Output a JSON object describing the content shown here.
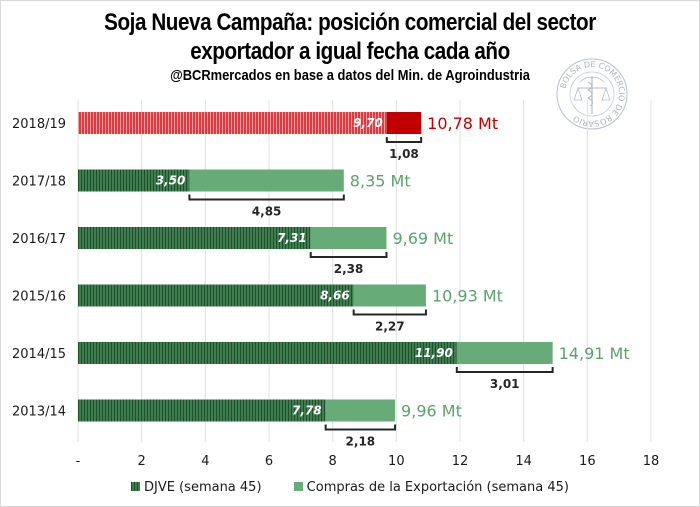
{
  "title_line1": "Soja Nueva Campaña:  posición comercial del sector",
  "title_line2": "exportador a igual fecha cada año",
  "subtitle": "@BCRmercados  en base a datos del Min. de Agroindustria",
  "seal_text": "BOLSA DE COMERCIO DE ROSARIO",
  "colors": {
    "djve_green": "#2e6b3f",
    "compras_green": "#66ab78",
    "djve_red": "#d6262c",
    "compras_red": "#c00000",
    "total_green": "#5aa36c",
    "total_red": "#c00000",
    "grid": "#e0e0e0"
  },
  "legend": [
    {
      "label": "DJVE (semana 45)",
      "color": "#2e6b3f"
    },
    {
      "label": "Compras de la Exportación (semana 45)",
      "color": "#66ab78"
    }
  ],
  "chart_data": {
    "type": "bar",
    "orientation": "horizontal",
    "stacked": true,
    "title": "Soja Nueva Campaña: posición comercial del sector exportador a igual fecha cada año",
    "subtitle": "@BCRmercados en base a datos del Min. de Agroindustria",
    "xlabel": "",
    "ylabel": "",
    "xlim": [
      0,
      18
    ],
    "x_ticks": [
      "-",
      "2",
      "4",
      "6",
      "8",
      "10",
      "12",
      "14",
      "16",
      "18"
    ],
    "grid": true,
    "legend_position": "bottom",
    "unit": "Mt",
    "categories": [
      "2018/19",
      "2017/18",
      "2016/17",
      "2015/16",
      "2014/15",
      "2013/14"
    ],
    "series": [
      {
        "name": "DJVE (semana 45)",
        "values": [
          9.7,
          3.5,
          7.31,
          8.66,
          11.9,
          7.78
        ],
        "labels": [
          "9,70",
          "3,50",
          "7,31",
          "8,66",
          "11,90",
          "7,78"
        ]
      },
      {
        "name": "Compras de la Exportación (semana 45)",
        "values": [
          10.78,
          8.35,
          9.69,
          10.93,
          14.91,
          9.96
        ],
        "labels": [
          "10,78 Mt",
          "8,35 Mt",
          "9,69 Mt",
          "10,93 Mt",
          "14,91 Mt",
          "9,96 Mt"
        ]
      }
    ],
    "differences": {
      "description": "Bracket showing Compras minus DJVE",
      "values": [
        1.08,
        4.85,
        2.38,
        2.27,
        3.01,
        2.18
      ],
      "labels": [
        "1,08",
        "4,85",
        "2,38",
        "2,27",
        "3,01",
        "2,18"
      ]
    },
    "highlight_category": "2018/19"
  }
}
